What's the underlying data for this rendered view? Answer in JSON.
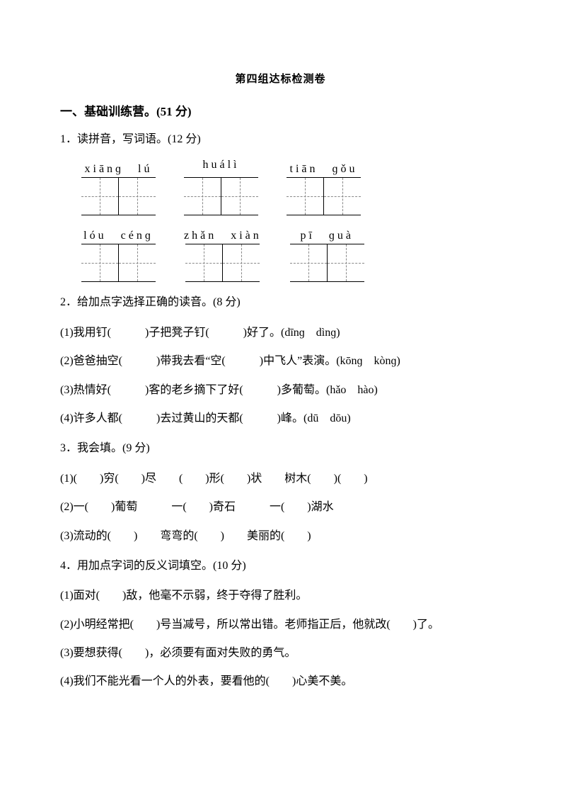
{
  "title": "第四组达标检测卷",
  "section1": {
    "heading": "一、基础训练营。(51 分)",
    "q1": {
      "stem": "1．读拼音，写词语。(12 分)",
      "row1": [
        "xiānɡ　lú",
        "huálì",
        "tiān　ɡǒu"
      ],
      "row2": [
        "lóu　cénɡ",
        "zhǎn　xiàn",
        "pī　ɡuà"
      ]
    },
    "q2": {
      "stem": "2．给加点字选择正确的读音。(8 分)",
      "i1a": "(1)我用钉(",
      "i1b": ")子把凳子钉(",
      "i1c": ")好了。(dīnɡ　dìnɡ)",
      "i2a": "(2)爸爸抽空(",
      "i2b": ")带我去看“空(",
      "i2c": ")中飞人”表演。(kōnɡ　kònɡ)",
      "i3a": "(3)热情好(",
      "i3b": ")客的老乡摘下了好(",
      "i3c": ")多葡萄。(hǎo　hào)",
      "i4a": "(4)许多人都(",
      "i4b": ")去过黄山的天都(",
      "i4c": ")峰。(dū　dōu)"
    },
    "q3": {
      "stem": "3．我会填。(9 分)",
      "i1": "(1)(　　)穷(　　)尽　　(　　)形(　　)状　　树木(　　)(　　)",
      "i2": "(2)一(　　)葡萄　　　一(　　)奇石　　　一(　　)湖水",
      "i3": "(3)流动的(　　)　　弯弯的(　　)　　美丽的(　　)"
    },
    "q4": {
      "stem": "4．用加点字词的反义词填空。(10 分)",
      "i1": "(1)面对(　　)敌，他毫不示弱，终于夺得了胜利。",
      "i2": "(2)小明经常把(　　)号当减号，所以常出错。老师指正后，他就改(　　)了。",
      "i3": "(3)要想获得(　　)，必须要有面对失败的勇气。",
      "i4": "(4)我们不能光看一个人的外表，要看他的(　　)心美不美。"
    }
  }
}
